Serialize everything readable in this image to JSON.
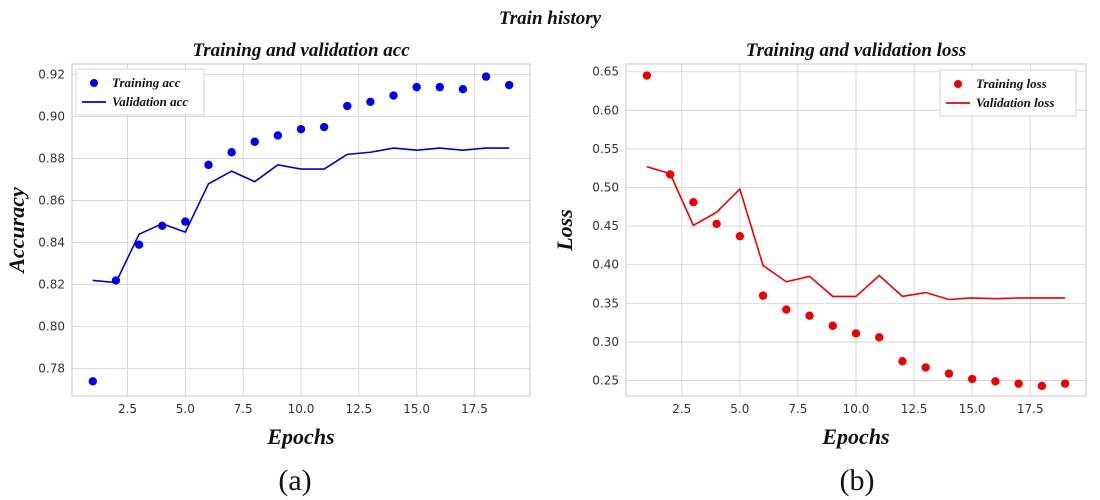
{
  "figure": {
    "title": "Train history",
    "captions": [
      "(a)",
      "(b)"
    ]
  },
  "chart_data": [
    {
      "type": "line",
      "title": "Training and validation acc",
      "xlabel": "Epochs",
      "ylabel": "Accuracy",
      "xlim": [
        0.1,
        19.9
      ],
      "ylim": [
        0.767,
        0.925
      ],
      "xticks": [
        2.5,
        5.0,
        7.5,
        10.0,
        12.5,
        15.0,
        17.5
      ],
      "xtick_labels": [
        "2.5",
        "5.0",
        "7.5",
        "10.0",
        "12.5",
        "15.0",
        "17.5"
      ],
      "yticks": [
        0.78,
        0.8,
        0.82,
        0.84,
        0.86,
        0.88,
        0.9,
        0.92
      ],
      "ytick_labels": [
        "0.78",
        "0.80",
        "0.82",
        "0.84",
        "0.86",
        "0.88",
        "0.90",
        "0.92"
      ],
      "grid": true,
      "legend_position": "top-left",
      "series": [
        {
          "name": "Training acc",
          "style": "dots",
          "color": "#0000ee",
          "x": [
            1,
            2,
            3,
            4,
            5,
            6,
            7,
            8,
            9,
            10,
            11,
            12,
            13,
            14,
            15,
            16,
            17,
            18,
            19
          ],
          "y": [
            0.774,
            0.822,
            0.839,
            0.848,
            0.85,
            0.877,
            0.883,
            0.888,
            0.891,
            0.894,
            0.895,
            0.905,
            0.907,
            0.91,
            0.914,
            0.914,
            0.913,
            0.919,
            0.915
          ]
        },
        {
          "name": "Validation acc",
          "style": "line",
          "color": "#0000cc",
          "x": [
            1,
            2,
            3,
            4,
            5,
            6,
            7,
            8,
            9,
            10,
            11,
            12,
            13,
            14,
            15,
            16,
            17,
            18,
            19
          ],
          "y": [
            0.822,
            0.821,
            0.844,
            0.849,
            0.845,
            0.868,
            0.874,
            0.869,
            0.877,
            0.875,
            0.875,
            0.882,
            0.883,
            0.885,
            0.884,
            0.885,
            0.884,
            0.885,
            0.885
          ]
        }
      ]
    },
    {
      "type": "line",
      "title": "Training and validation loss",
      "xlabel": "Epochs",
      "ylabel": "Loss",
      "xlim": [
        0.1,
        19.9
      ],
      "ylim": [
        0.23,
        0.66
      ],
      "xticks": [
        2.5,
        5.0,
        7.5,
        10.0,
        12.5,
        15.0,
        17.5
      ],
      "xtick_labels": [
        "2.5",
        "5.0",
        "7.5",
        "10.0",
        "12.5",
        "15.0",
        "17.5"
      ],
      "yticks": [
        0.25,
        0.3,
        0.35,
        0.4,
        0.45,
        0.5,
        0.55,
        0.6,
        0.65
      ],
      "ytick_labels": [
        "0.25",
        "0.30",
        "0.35",
        "0.40",
        "0.45",
        "0.50",
        "0.55",
        "0.60",
        "0.65"
      ],
      "grid": true,
      "legend_position": "top-right",
      "series": [
        {
          "name": "Training loss",
          "style": "dots",
          "color": "#ee0000",
          "x": [
            1,
            2,
            3,
            4,
            5,
            6,
            7,
            8,
            9,
            10,
            11,
            12,
            13,
            14,
            15,
            16,
            17,
            18,
            19
          ],
          "y": [
            0.645,
            0.517,
            0.481,
            0.453,
            0.437,
            0.36,
            0.342,
            0.334,
            0.321,
            0.311,
            0.306,
            0.275,
            0.267,
            0.259,
            0.252,
            0.249,
            0.246,
            0.243,
            0.246
          ]
        },
        {
          "name": "Validation loss",
          "style": "line",
          "color": "#ee0000",
          "x": [
            1,
            2,
            3,
            4,
            5,
            6,
            7,
            8,
            9,
            10,
            11,
            12,
            13,
            14,
            15,
            16,
            17,
            18,
            19
          ],
          "y": [
            0.527,
            0.518,
            0.451,
            0.468,
            0.498,
            0.399,
            0.378,
            0.385,
            0.359,
            0.359,
            0.386,
            0.359,
            0.364,
            0.355,
            0.357,
            0.356,
            0.357,
            0.357,
            0.357
          ]
        }
      ]
    }
  ]
}
